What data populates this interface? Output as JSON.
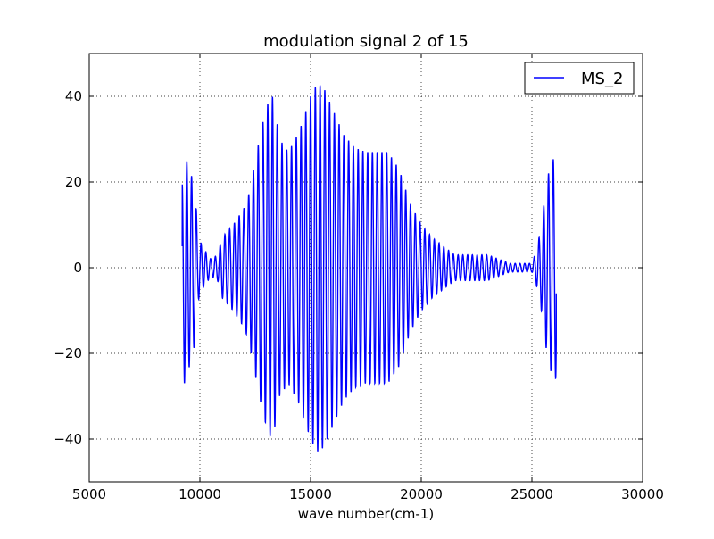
{
  "chart_data": {
    "type": "line",
    "title": "modulation signal 2 of 15",
    "xlabel": "wave number(cm-1)",
    "ylabel": "",
    "xlim": [
      5000,
      30000
    ],
    "ylim": [
      -50,
      50
    ],
    "x_ticks": [
      5000,
      10000,
      15000,
      20000,
      25000,
      30000
    ],
    "y_ticks": [
      -40,
      -20,
      0,
      20,
      40
    ],
    "x_tick_labels": [
      "5000",
      "10000",
      "15000",
      "20000",
      "25000",
      "30000"
    ],
    "y_tick_labels": [
      "−40",
      "−20",
      "0",
      "20",
      "40"
    ],
    "grid": true,
    "legend_position": "top-right",
    "series": [
      {
        "name": "MS_2",
        "color": "#0000ff",
        "x_start": 9200,
        "x_end": 26100,
        "envelope_knots": [
          [
            9200,
            20
          ],
          [
            9300,
            27
          ],
          [
            9400,
            25
          ],
          [
            9600,
            22
          ],
          [
            9800,
            17
          ],
          [
            9900,
            8
          ],
          [
            10100,
            5
          ],
          [
            10500,
            2
          ],
          [
            10800,
            3
          ],
          [
            11000,
            7
          ],
          [
            11500,
            10
          ],
          [
            12000,
            14
          ],
          [
            12200,
            17
          ],
          [
            12500,
            25
          ],
          [
            12800,
            33
          ],
          [
            13100,
            39
          ],
          [
            13300,
            40
          ],
          [
            13600,
            30
          ],
          [
            14000,
            27
          ],
          [
            14500,
            32
          ],
          [
            15000,
            40
          ],
          [
            15300,
            43
          ],
          [
            15600,
            42
          ],
          [
            16000,
            37
          ],
          [
            16500,
            31
          ],
          [
            17000,
            28
          ],
          [
            17500,
            27
          ],
          [
            18000,
            27
          ],
          [
            18500,
            27
          ],
          [
            19000,
            23
          ],
          [
            19500,
            15
          ],
          [
            20000,
            10
          ],
          [
            20500,
            7
          ],
          [
            21000,
            5
          ],
          [
            21500,
            3
          ],
          [
            22000,
            3
          ],
          [
            22500,
            3
          ],
          [
            23000,
            3
          ],
          [
            23500,
            2
          ],
          [
            24000,
            1
          ],
          [
            24500,
            1
          ],
          [
            25000,
            1
          ],
          [
            25200,
            4
          ],
          [
            25400,
            9
          ],
          [
            25700,
            21
          ],
          [
            25900,
            25
          ],
          [
            26100,
            26
          ]
        ],
        "oscillation_period": 215,
        "start_value": 5,
        "end_value": -6
      }
    ]
  }
}
